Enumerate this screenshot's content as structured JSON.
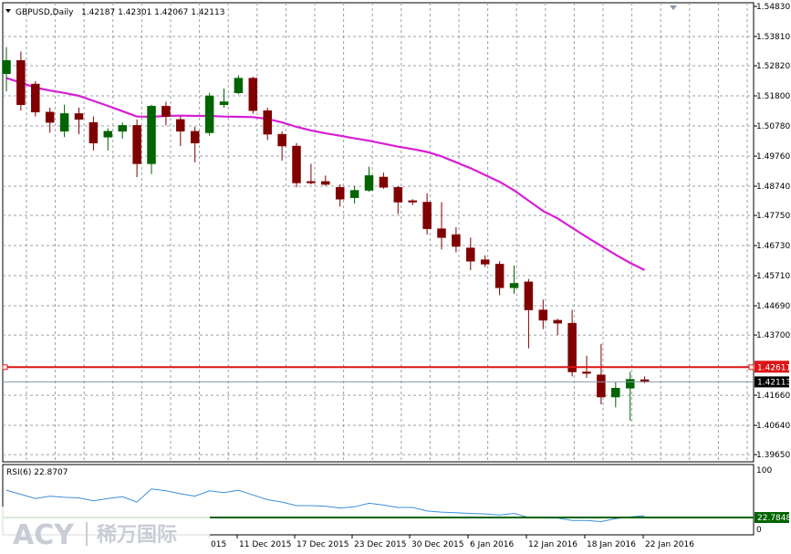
{
  "header": {
    "symbol_tf": "GBPUSD,Daily",
    "ohlc": "1.42187 1.42301 1.42067 1.42113"
  },
  "colors": {
    "bull": "#006400",
    "bear": "#800000",
    "ma": "#d61ed6",
    "hline": "#dc1414",
    "grid": "#9aa0a8",
    "rsi": "#3c8fd6",
    "rsi_level": "#006400"
  },
  "watermark": {
    "brand": "ACY",
    "tagline": "稀万国际"
  },
  "chart_data": [
    {
      "type": "candlestick",
      "title": "GBPUSD,Daily",
      "ylim": [
        1.3956,
        1.5483
      ],
      "y_ticks": [
        "1.54830",
        "1.53810",
        "1.52820",
        "1.51800",
        "1.50780",
        "1.49760",
        "1.48740",
        "1.47750",
        "1.46730",
        "1.45710",
        "1.44690",
        "1.43700",
        "1.41660",
        "1.40640",
        "1.39650"
      ],
      "x_tick_labels": [
        "015",
        "11 Dec 2015",
        "17 Dec 2015",
        "23 Dec 2015",
        "30 Dec 2015",
        "6 Jan 2016",
        "12 Jan 2016",
        "18 Jan 2016",
        "22 Jan 2016"
      ],
      "price_labels": {
        "hline": "1.42611",
        "bid": "1.42113"
      },
      "hline_value": 1.42611,
      "bid_value": 1.42113,
      "candles": [
        [
          1.5255,
          1.5345,
          1.5195,
          1.53
        ],
        [
          1.53,
          1.533,
          1.513,
          1.515
        ],
        [
          1.522,
          1.523,
          1.511,
          1.5125
        ],
        [
          1.5125,
          1.514,
          1.5055,
          1.509
        ],
        [
          1.506,
          1.515,
          1.504,
          1.512
        ],
        [
          1.512,
          1.514,
          1.505,
          1.51
        ],
        [
          1.509,
          1.511,
          1.4995,
          1.502
        ],
        [
          1.504,
          1.507,
          1.4995,
          1.506
        ],
        [
          1.506,
          1.509,
          1.5035,
          1.508
        ],
        [
          1.508,
          1.51,
          1.4905,
          1.495
        ],
        [
          1.495,
          1.515,
          1.4915,
          1.5145
        ],
        [
          1.5145,
          1.516,
          1.508,
          1.511
        ],
        [
          1.51,
          1.511,
          1.501,
          1.506
        ],
        [
          1.506,
          1.5075,
          1.4955,
          1.502
        ],
        [
          1.5055,
          1.519,
          1.5045,
          1.518
        ],
        [
          1.515,
          1.5205,
          1.514,
          1.516
        ],
        [
          1.519,
          1.525,
          1.5185,
          1.524
        ],
        [
          1.524,
          1.5245,
          1.512,
          1.513
        ],
        [
          1.513,
          1.514,
          1.503,
          1.505
        ],
        [
          1.505,
          1.506,
          1.496,
          1.501
        ],
        [
          1.501,
          1.502,
          1.487,
          1.4885
        ],
        [
          1.489,
          1.495,
          1.488,
          1.4885
        ],
        [
          1.489,
          1.491,
          1.4875,
          1.488
        ],
        [
          1.487,
          1.488,
          1.4805,
          1.483
        ],
        [
          1.4835,
          1.4875,
          1.4815,
          1.486
        ],
        [
          1.486,
          1.494,
          1.4855,
          1.491
        ],
        [
          1.4905,
          1.492,
          1.4865,
          1.487
        ],
        [
          1.487,
          1.4875,
          1.478,
          1.482
        ],
        [
          1.4825,
          1.483,
          1.481,
          1.482
        ],
        [
          1.482,
          1.485,
          1.471,
          1.473
        ],
        [
          1.473,
          1.482,
          1.466,
          1.47
        ],
        [
          1.471,
          1.4735,
          1.465,
          1.467
        ],
        [
          1.4665,
          1.47,
          1.459,
          1.462
        ],
        [
          1.4625,
          1.464,
          1.46,
          1.461
        ],
        [
          1.461,
          1.462,
          1.4505,
          1.453
        ],
        [
          1.453,
          1.4605,
          1.451,
          1.4545
        ],
        [
          1.455,
          1.456,
          1.4325,
          1.4455
        ],
        [
          1.4455,
          1.449,
          1.439,
          1.442
        ],
        [
          1.442,
          1.4425,
          1.437,
          1.441
        ],
        [
          1.441,
          1.4455,
          1.423,
          1.4245
        ],
        [
          1.4245,
          1.43,
          1.4225,
          1.424
        ],
        [
          1.4235,
          1.434,
          1.4135,
          1.416
        ],
        [
          1.416,
          1.421,
          1.4125,
          1.419
        ],
        [
          1.419,
          1.4245,
          1.408,
          1.422
        ],
        [
          1.42187,
          1.42301,
          1.42067,
          1.42113
        ]
      ],
      "ma_values": [
        1.524,
        1.5225,
        1.5208,
        1.5198,
        1.519,
        1.518,
        1.5163,
        1.5146,
        1.5128,
        1.511,
        1.5109,
        1.5112,
        1.5113,
        1.5112,
        1.5112,
        1.511,
        1.5109,
        1.5108,
        1.5102,
        1.509,
        1.5075,
        1.5063,
        1.5053,
        1.5045,
        1.5036,
        1.5028,
        1.5018,
        1.5008,
        1.5,
        1.499,
        1.4975,
        1.4955,
        1.4935,
        1.4912,
        1.4889,
        1.486,
        1.4825,
        1.479,
        1.4765,
        1.4733,
        1.4702,
        1.4672,
        1.4642,
        1.4614,
        1.459
      ]
    },
    {
      "type": "line",
      "title": "RSI(6) 22.8707",
      "ylim": [
        0,
        100
      ],
      "y_ticks": [
        "100",
        "0"
      ],
      "level_value": 20,
      "level_label": "22.7848",
      "values": [
        66,
        59,
        52,
        56,
        54,
        53,
        48,
        52,
        55,
        46,
        68,
        65,
        60,
        56,
        65,
        62,
        66,
        58,
        50,
        46,
        40,
        40,
        39,
        36,
        38,
        44,
        41,
        37,
        37,
        31,
        29,
        28,
        27,
        26,
        24,
        27,
        20,
        19,
        19,
        15,
        15,
        13,
        18,
        21,
        23
      ]
    }
  ]
}
